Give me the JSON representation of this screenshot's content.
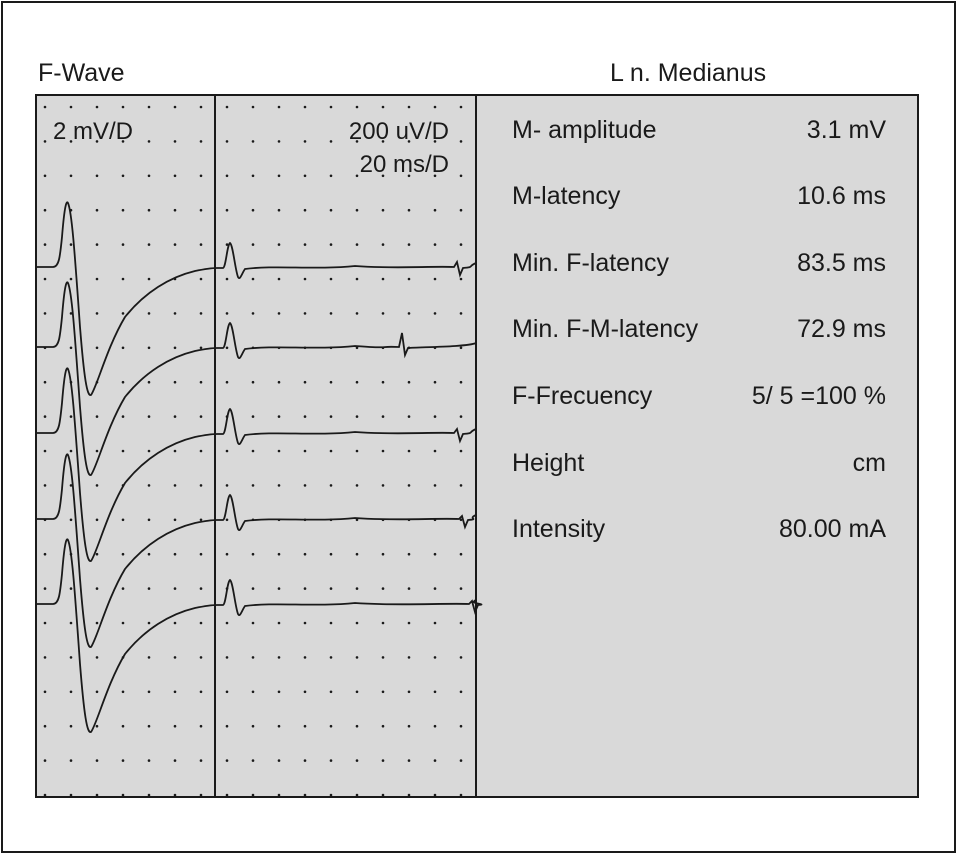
{
  "header": {
    "left_title": "F-Wave",
    "right_title": "L n. Medianus"
  },
  "display": {
    "left_scale": "2 mV/D",
    "right_scale": "200 uV/D",
    "time_scale": "20 ms/D"
  },
  "results": [
    {
      "label": "M- amplitude",
      "value": "3.1 mV"
    },
    {
      "label": "M-latency",
      "value": "10.6 ms"
    },
    {
      "label": "Min. F-latency",
      "value": "83.5 ms"
    },
    {
      "label": "Min. F-M-latency",
      "value": "72.9 ms"
    },
    {
      "label": "F-Frecuency",
      "value": "5/ 5 =100 %"
    },
    {
      "label": "Height",
      "value": "cm"
    },
    {
      "label": "Intensity",
      "value": "80.00 mA"
    }
  ],
  "chart_data": {
    "type": "line",
    "trace_count": 5,
    "colors": {
      "panel": "#d9d9d9",
      "trace": "#1a1a1a"
    }
  }
}
